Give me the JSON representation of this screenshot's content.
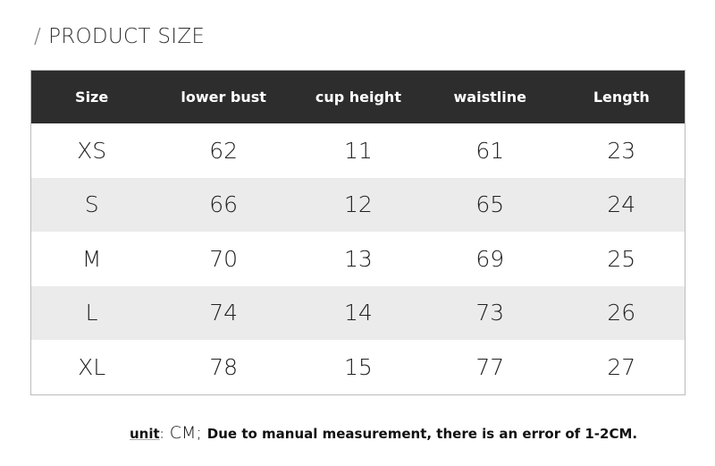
{
  "title": {
    "slash": "/",
    "text": "PRODUCT SIZE"
  },
  "table": {
    "headers": [
      "Size",
      "lower bust",
      "cup height",
      "waistline",
      "Length"
    ],
    "rows": [
      [
        "XS",
        "62",
        "11",
        "61",
        "23"
      ],
      [
        "S",
        "66",
        "12",
        "65",
        "24"
      ],
      [
        "M",
        "70",
        "13",
        "69",
        "25"
      ],
      [
        "L",
        "74",
        "14",
        "73",
        "26"
      ],
      [
        "XL",
        "78",
        "15",
        "77",
        "27"
      ]
    ]
  },
  "footer": {
    "unit_label": "unit",
    "separator": ":",
    "unit_value": "CM;",
    "note": "Due to manual measurement, there is an error of 1-2CM."
  },
  "colors": {
    "header_bg": "#2d2d2d",
    "alt_row_bg": "#ebebeb"
  }
}
